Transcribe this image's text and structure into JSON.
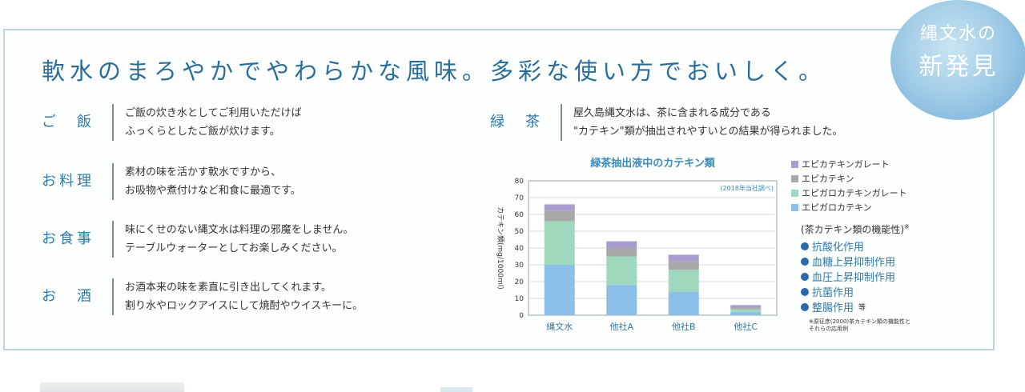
{
  "seal": {
    "line1": "縄文水の",
    "line2": "新発見"
  },
  "headline": "軟水のまろやかでやわらかな風味。多彩な使い方でおいしく。",
  "items": [
    {
      "label": "ご　飯",
      "lines": [
        "ご飯の炊き水としてご利用いただけば",
        "ふっくらとしたご飯が炊けます。"
      ]
    },
    {
      "label": "お料理",
      "lines": [
        "素材の味を活かす軟水ですから、",
        "お吸物や煮付けなど和食に最適です。"
      ]
    },
    {
      "label": "お食事",
      "lines": [
        "味にくせのない縄文水は料理の邪魔をしません。",
        "テーブルウォーターとしてお楽しみください。"
      ]
    },
    {
      "label": "お　酒",
      "lines": [
        "お酒本来の味を素直に引き出してくれます。",
        "割り水やロックアイスにして焼酎やウイスキーに。"
      ]
    },
    {
      "label": "緑　茶",
      "lines": [
        "屋久島縄文水は、茶に含まれる成分である",
        "\"カテキン\"類が抽出されやすいとの結果が得られました。"
      ]
    }
  ],
  "functions": {
    "title": "(茶カテキン類の機能性)",
    "title_mark": "※",
    "items": [
      "抗酸化作用",
      "血糖上昇抑制作用",
      "血圧上昇抑制作用",
      "抗菌作用",
      "整腸作用"
    ],
    "last_suffix": "等",
    "footnote": [
      "※原征彦(2000)茶カテキン類の機能性と",
      "それらの応用例"
    ]
  },
  "chart_data": {
    "type": "bar",
    "stacked": true,
    "title": "緑茶抽出液中のカテキン類",
    "note": "(2018年当社調べ)",
    "ylabel": "カテキン類(mg/1000ml)",
    "ylim": [
      0,
      80
    ],
    "yticks": [
      0,
      10,
      20,
      30,
      40,
      50,
      60,
      70,
      80
    ],
    "categories": [
      "縄文水",
      "他社A",
      "他社B",
      "他社C"
    ],
    "series": [
      {
        "name": "エピガロカテキン",
        "color": "#8dc0e8",
        "values": [
          30,
          18,
          14,
          2
        ]
      },
      {
        "name": "エピガロカテキンガレート",
        "color": "#9fd8bc",
        "values": [
          26,
          17,
          13,
          1.5
        ]
      },
      {
        "name": "エピカテキン",
        "color": "#a9a9a9",
        "values": [
          6,
          5,
          5,
          1
        ]
      },
      {
        "name": "エピカテキンガレート",
        "color": "#a99ccf",
        "values": [
          4,
          4,
          4,
          1.5
        ]
      }
    ],
    "legend_order": [
      "エピカテキンガレート",
      "エピカテキン",
      "エピガロカテキンガレート",
      "エピガロカテキン"
    ],
    "grid": true,
    "legend_position": "right"
  }
}
